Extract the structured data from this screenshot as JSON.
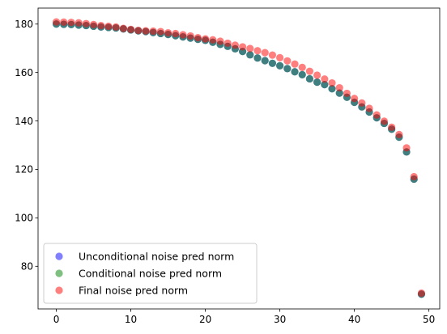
{
  "chart_data": {
    "type": "scatter",
    "title": "",
    "xlabel": "",
    "ylabel": "",
    "xlim": [
      -2.45,
      51.45
    ],
    "ylim": [
      62.4,
      186.6
    ],
    "grid": false,
    "legend_placement": "lower-left",
    "x_ticks": [
      0,
      10,
      20,
      30,
      40,
      50
    ],
    "y_ticks": [
      80,
      100,
      120,
      140,
      160,
      180
    ],
    "x_tick_labels": [
      "0",
      "10",
      "20",
      "30",
      "40",
      "50"
    ],
    "y_tick_labels": [
      "80",
      "100",
      "120",
      "140",
      "160",
      "180"
    ],
    "x": [
      0,
      1,
      2,
      3,
      4,
      5,
      6,
      7,
      8,
      9,
      10,
      11,
      12,
      13,
      14,
      15,
      16,
      17,
      18,
      19,
      20,
      21,
      22,
      23,
      24,
      25,
      26,
      27,
      28,
      29,
      30,
      31,
      32,
      33,
      34,
      35,
      36,
      37,
      38,
      39,
      40,
      41,
      42,
      43,
      44,
      45,
      46,
      47,
      48,
      49
    ],
    "series": [
      {
        "name": "Unconditional noise pred norm",
        "color": "#0000ff",
        "alpha": 0.5,
        "values": [
          180.0,
          179.9,
          179.8,
          179.6,
          179.4,
          179.1,
          178.8,
          178.6,
          178.4,
          178.0,
          177.6,
          177.2,
          176.9,
          176.5,
          176.1,
          175.7,
          175.2,
          174.7,
          174.2,
          173.7,
          173.3,
          172.5,
          171.6,
          170.8,
          169.8,
          168.7,
          167.3,
          166.0,
          164.9,
          163.8,
          162.8,
          161.6,
          160.3,
          159.1,
          157.4,
          156.0,
          155.0,
          153.3,
          151.5,
          149.8,
          147.7,
          145.8,
          143.7,
          141.3,
          139.0,
          136.6,
          133.3,
          127.2,
          116.0,
          68.5
        ]
      },
      {
        "name": "Conditional noise pred norm",
        "color": "#008000",
        "alpha": 0.5,
        "values": [
          180.0,
          179.9,
          179.8,
          179.6,
          179.4,
          179.1,
          178.8,
          178.6,
          178.4,
          178.0,
          177.6,
          177.2,
          176.9,
          176.5,
          176.1,
          175.7,
          175.2,
          174.7,
          174.2,
          173.7,
          173.3,
          172.5,
          171.6,
          170.8,
          169.8,
          168.7,
          167.3,
          166.0,
          164.9,
          163.8,
          162.8,
          161.6,
          160.3,
          159.1,
          157.4,
          156.0,
          155.0,
          153.3,
          151.5,
          149.8,
          147.7,
          145.8,
          143.7,
          141.3,
          139.0,
          136.6,
          133.3,
          127.2,
          116.0,
          68.5
        ]
      },
      {
        "name": "Final noise pred norm",
        "color": "#ff0000",
        "alpha": 0.5,
        "values": [
          180.9,
          180.8,
          180.7,
          180.5,
          180.2,
          179.8,
          179.4,
          179.1,
          178.8,
          178.2,
          177.8,
          177.4,
          177.2,
          177.1,
          176.9,
          176.4,
          176.1,
          175.6,
          175.1,
          174.4,
          173.9,
          173.5,
          172.9,
          172.1,
          171.3,
          170.6,
          169.9,
          169.0,
          168.2,
          167.2,
          166.1,
          164.8,
          163.5,
          162.1,
          160.5,
          158.9,
          157.3,
          155.7,
          153.7,
          151.4,
          149.3,
          147.4,
          145.2,
          142.5,
          139.9,
          137.4,
          134.4,
          128.9,
          117.0,
          68.9
        ]
      }
    ]
  }
}
